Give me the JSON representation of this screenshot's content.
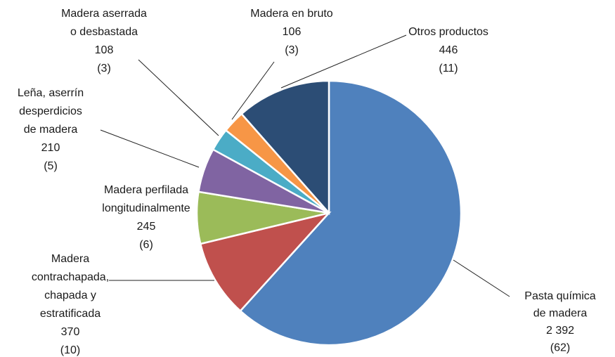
{
  "chart_data": {
    "type": "pie",
    "categories": [
      [
        "Pasta química",
        "de madera"
      ],
      [
        "Madera",
        "contrachapada,",
        "chapada y",
        "estratificada"
      ],
      [
        "Madera perfilada",
        "longitudinalmente"
      ],
      [
        "Leña, aserrín",
        "desperdicios",
        "de madera"
      ],
      [
        "Madera aserrada",
        "o desbastada"
      ],
      [
        "Madera en bruto"
      ],
      [
        "Otros productos"
      ]
    ],
    "values": [
      2392,
      370,
      245,
      210,
      108,
      106,
      446
    ],
    "value_labels": [
      "2 392",
      "370",
      "245",
      "210",
      "108",
      "106",
      "446"
    ],
    "percent": [
      62,
      10,
      6,
      5,
      3,
      3,
      11
    ],
    "percent_labels": [
      "(62)",
      "(10)",
      "(6)",
      "(5)",
      "(3)",
      "(3)",
      "(11)"
    ],
    "colors": [
      "#4f81bd",
      "#c0504d",
      "#9bbb59",
      "#8064a2",
      "#4bacc6",
      "#f79646",
      "#2c4d75"
    ]
  }
}
